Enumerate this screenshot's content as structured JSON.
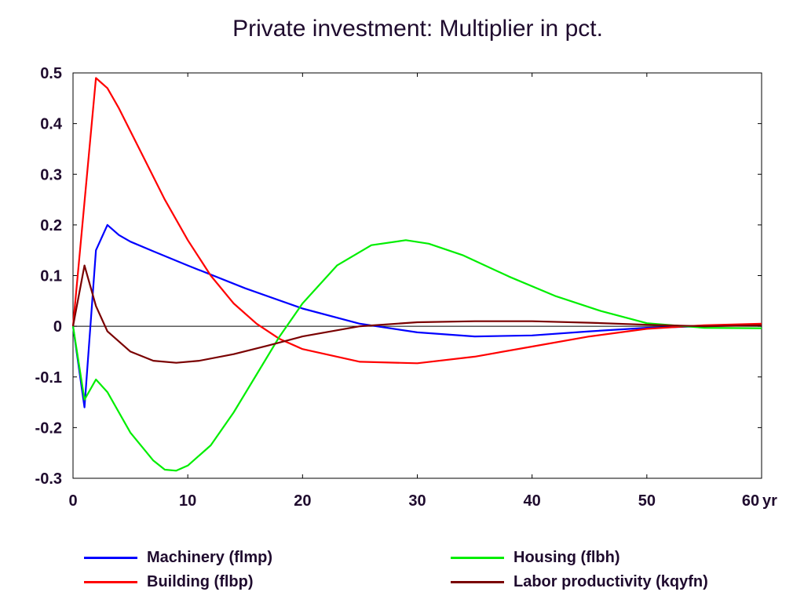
{
  "chart_data": {
    "type": "line",
    "title": "Private investment: Multiplier in pct.",
    "xlabel": "",
    "ylabel": "",
    "x_unit_label": "yr",
    "xlim": [
      0,
      60
    ],
    "ylim": [
      -0.3,
      0.5
    ],
    "x_ticks": [
      "0",
      "10",
      "20",
      "30",
      "40",
      "50",
      "60"
    ],
    "y_ticks": [
      "0.5",
      "0.4",
      "0.3",
      "0.2",
      "0.1",
      "0",
      "-0.1",
      "-0.2",
      "-0.3"
    ],
    "grid": false,
    "legend_position": "bottom",
    "series": [
      {
        "name": "Machinery (flmp)",
        "color": "#0000ff",
        "points": [
          [
            0,
            0
          ],
          [
            1,
            -0.16
          ],
          [
            2,
            0.15
          ],
          [
            3,
            0.2
          ],
          [
            4,
            0.18
          ],
          [
            5,
            0.167
          ],
          [
            7,
            0.148
          ],
          [
            10,
            0.12
          ],
          [
            15,
            0.075
          ],
          [
            20,
            0.035
          ],
          [
            25,
            0.005
          ],
          [
            30,
            -0.012
          ],
          [
            35,
            -0.02
          ],
          [
            40,
            -0.018
          ],
          [
            45,
            -0.01
          ],
          [
            50,
            -0.003
          ],
          [
            55,
            0
          ],
          [
            60,
            0.003
          ]
        ]
      },
      {
        "name": "Building (flbp)",
        "color": "#ff0000",
        "points": [
          [
            0,
            0
          ],
          [
            2,
            0.49
          ],
          [
            3,
            0.47
          ],
          [
            4,
            0.43
          ],
          [
            6,
            0.34
          ],
          [
            8,
            0.25
          ],
          [
            10,
            0.17
          ],
          [
            12,
            0.1
          ],
          [
            14,
            0.045
          ],
          [
            16,
            0.005
          ],
          [
            18,
            -0.025
          ],
          [
            20,
            -0.045
          ],
          [
            25,
            -0.07
          ],
          [
            30,
            -0.073
          ],
          [
            35,
            -0.06
          ],
          [
            40,
            -0.04
          ],
          [
            45,
            -0.02
          ],
          [
            50,
            -0.005
          ],
          [
            55,
            0.002
          ],
          [
            60,
            0.005
          ]
        ]
      },
      {
        "name": "Housing (flbh)",
        "color": "#00ee00",
        "points": [
          [
            0,
            0
          ],
          [
            1,
            -0.145
          ],
          [
            2,
            -0.105
          ],
          [
            3,
            -0.13
          ],
          [
            5,
            -0.21
          ],
          [
            7,
            -0.265
          ],
          [
            8,
            -0.283
          ],
          [
            9,
            -0.285
          ],
          [
            10,
            -0.275
          ],
          [
            12,
            -0.235
          ],
          [
            14,
            -0.17
          ],
          [
            16,
            -0.095
          ],
          [
            18,
            -0.02
          ],
          [
            20,
            0.045
          ],
          [
            23,
            0.12
          ],
          [
            26,
            0.16
          ],
          [
            29,
            0.17
          ],
          [
            31,
            0.163
          ],
          [
            34,
            0.14
          ],
          [
            38,
            0.098
          ],
          [
            42,
            0.06
          ],
          [
            46,
            0.03
          ],
          [
            50,
            0.006
          ],
          [
            55,
            -0.003
          ],
          [
            60,
            -0.004
          ]
        ]
      },
      {
        "name": "Labor productivity (kqyfn)",
        "color": "#7a0000",
        "points": [
          [
            0,
            0
          ],
          [
            1,
            0.12
          ],
          [
            2,
            0.04
          ],
          [
            3,
            -0.01
          ],
          [
            5,
            -0.05
          ],
          [
            7,
            -0.068
          ],
          [
            9,
            -0.072
          ],
          [
            11,
            -0.068
          ],
          [
            14,
            -0.055
          ],
          [
            17,
            -0.038
          ],
          [
            20,
            -0.02
          ],
          [
            25,
            0
          ],
          [
            30,
            0.008
          ],
          [
            35,
            0.01
          ],
          [
            40,
            0.01
          ],
          [
            45,
            0.007
          ],
          [
            50,
            0.003
          ],
          [
            55,
            0
          ],
          [
            60,
            0.002
          ]
        ]
      }
    ]
  }
}
